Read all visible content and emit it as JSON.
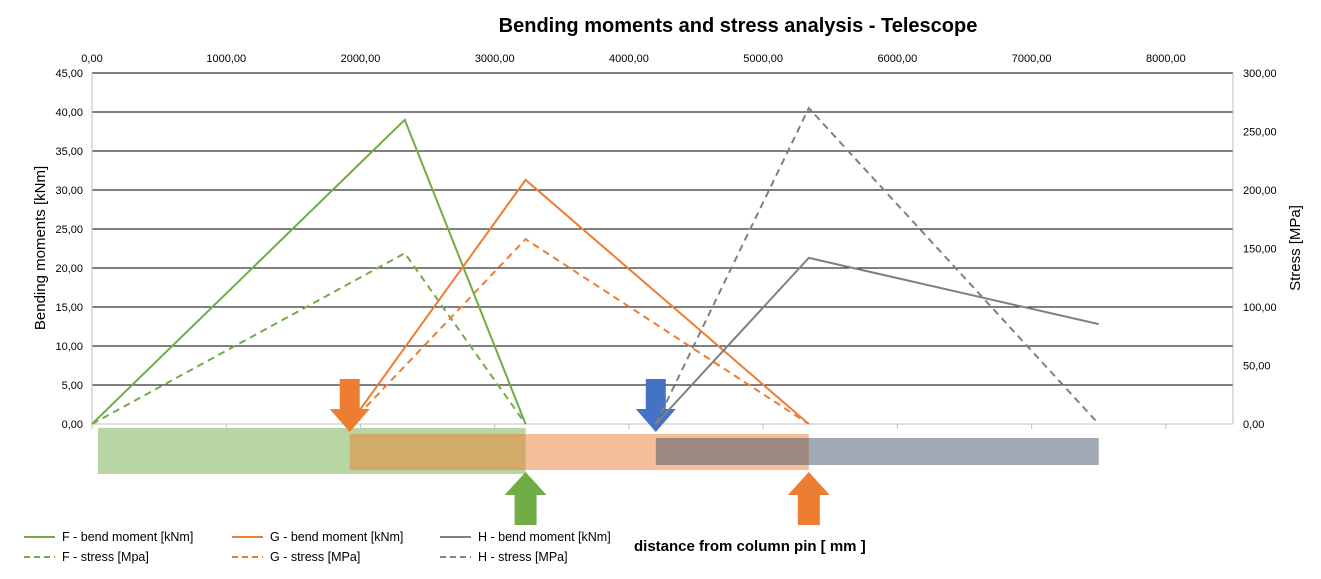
{
  "chart_data": {
    "type": "line",
    "title": "Bending moments and stress analysis - Telescope",
    "xlabel": "distance from column pin [ mm ]",
    "ylabel": "Bending moments [kNm]",
    "y2label": "Stress [MPa]",
    "xlim": [
      0,
      8500
    ],
    "ylim": [
      0,
      45
    ],
    "y2lim": [
      0,
      300
    ],
    "x_ticks": [
      0,
      1000,
      2000,
      3000,
      4000,
      5000,
      6000,
      7000,
      8000
    ],
    "x_tick_labels": [
      "0,00",
      "1000,00",
      "2000,00",
      "3000,00",
      "4000,00",
      "5000,00",
      "6000,00",
      "7000,00",
      "8000,00"
    ],
    "y_ticks": [
      0,
      5,
      10,
      15,
      20,
      25,
      30,
      35,
      40,
      45
    ],
    "y_tick_labels": [
      "0,00",
      "5,00",
      "10,00",
      "15,00",
      "20,00",
      "25,00",
      "30,00",
      "35,00",
      "40,00",
      "45,00"
    ],
    "y2_ticks": [
      0,
      50,
      100,
      150,
      200,
      250,
      300
    ],
    "y2_tick_labels": [
      "0,00",
      "50,00",
      "100,00",
      "150,00",
      "200,00",
      "250,00",
      "300,00"
    ],
    "grid": true,
    "series": [
      {
        "name": "F - bend moment [kNm]",
        "axis": "left",
        "style": "solid",
        "color": "#70ad47",
        "x": [
          0,
          2330,
          3230
        ],
        "y": [
          0,
          39.0,
          0
        ]
      },
      {
        "name": "F - stress [Mpa]",
        "axis": "right",
        "style": "dashed",
        "color": "#70ad47",
        "x": [
          0,
          2330,
          3230
        ],
        "y": [
          0,
          146,
          0
        ]
      },
      {
        "name": "G - bend moment [kNm]",
        "axis": "left",
        "style": "solid",
        "color": "#ed7d31",
        "x": [
          1920,
          3230,
          5340
        ],
        "y": [
          0,
          31.3,
          0
        ]
      },
      {
        "name": "G - stress [MPa]",
        "axis": "right",
        "style": "dashed",
        "color": "#ed7d31",
        "x": [
          1920,
          3230,
          5340
        ],
        "y": [
          0,
          158,
          0
        ]
      },
      {
        "name": "H - bend moment [kNm]",
        "axis": "left",
        "style": "solid",
        "color": "#808080",
        "x": [
          4200,
          5340,
          7500
        ],
        "y": [
          0,
          21.3,
          12.8
        ]
      },
      {
        "name": "H - stress [MPa]",
        "axis": "right",
        "style": "dashed",
        "color": "#808080",
        "x": [
          4200,
          5340,
          7500
        ],
        "y": [
          0,
          270,
          0
        ]
      }
    ],
    "segments": [
      {
        "name": "F",
        "from": 0,
        "to": 3230,
        "color": "#70ad47"
      },
      {
        "name": "G",
        "from": 1920,
        "to": 5340,
        "color": "#ed7d31"
      },
      {
        "name": "H",
        "from": 4200,
        "to": 7500,
        "color": "#44546a"
      }
    ],
    "arrows": [
      {
        "name": "G pin (down)",
        "x": 1920,
        "direction": "down",
        "color": "#ed7d31"
      },
      {
        "name": "H pin (down)",
        "x": 4200,
        "direction": "down",
        "color": "#4472c4"
      },
      {
        "name": "F support (up)",
        "x": 3230,
        "direction": "up",
        "color": "#70ad47"
      },
      {
        "name": "G support (up)",
        "x": 5340,
        "direction": "up",
        "color": "#ed7d31"
      }
    ]
  }
}
